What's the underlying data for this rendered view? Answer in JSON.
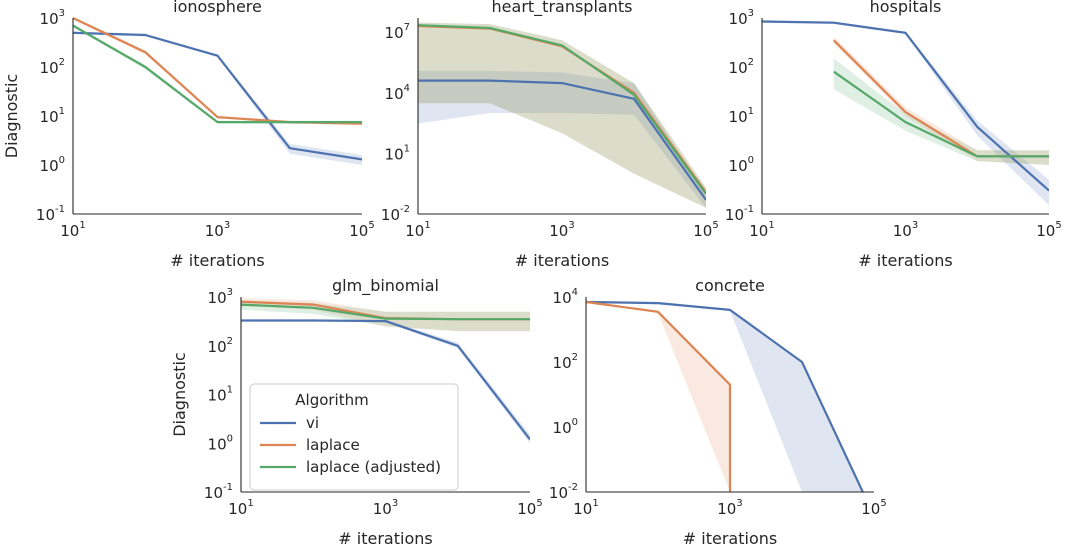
{
  "figure": {
    "ylabel": "Diagnostic",
    "xlabel": "# iterations",
    "xscale": "log",
    "yscale": "log",
    "xlim": [
      10,
      100000
    ],
    "x_ticks": [
      "10^1",
      "10^3",
      "10^5"
    ],
    "grid": false
  },
  "legend": {
    "title": "Algorithm",
    "placement": "lower-left of glm_binomial panel",
    "entries": [
      {
        "name": "vi",
        "color": "#4c72b0"
      },
      {
        "name": "laplace",
        "color": "#dd8452"
      },
      {
        "name": "laplace (adjusted)",
        "color": "#55a868"
      }
    ]
  },
  "colors": {
    "vi": "#4c72b0",
    "laplace": "#dd8452",
    "laplace (adjusted)": "#55a868"
  },
  "chart_data": [
    {
      "title": "ionosphere",
      "type": "line",
      "xlabel": "# iterations",
      "ylabel": "Diagnostic",
      "ylim": [
        0.1,
        1000
      ],
      "y_ticks": [
        "10^-1",
        "10^0",
        "10^1",
        "10^2",
        "10^3"
      ],
      "series": [
        {
          "name": "vi",
          "x": [
            10,
            100,
            1000,
            10000,
            100000
          ],
          "y": [
            500,
            450,
            170,
            2.2,
            1.3
          ],
          "lo": [
            470,
            420,
            160,
            1.7,
            1.0
          ],
          "hi": [
            530,
            480,
            180,
            2.7,
            1.6
          ]
        },
        {
          "name": "laplace",
          "x": [
            10,
            100,
            1000,
            10000,
            100000
          ],
          "y": [
            1000,
            200,
            9.5,
            7.5,
            7.0
          ],
          "lo": [
            950,
            180,
            9.0,
            7.0,
            6.5
          ],
          "hi": [
            1050,
            220,
            10.0,
            8.0,
            7.5
          ]
        },
        {
          "name": "laplace (adjusted)",
          "x": [
            10,
            100,
            1000,
            10000,
            100000
          ],
          "y": [
            700,
            100,
            7.5,
            7.5,
            7.5
          ],
          "lo": [
            650,
            90,
            7.0,
            7.0,
            7.0
          ],
          "hi": [
            750,
            110,
            8.0,
            8.0,
            8.0
          ]
        }
      ]
    },
    {
      "title": "heart_transplants",
      "type": "line",
      "xlabel": "# iterations",
      "ylabel": "",
      "ylim": [
        0.01,
        50000000
      ],
      "y_ticks": [
        "10^-2",
        "10^1",
        "10^4",
        "10^7"
      ],
      "series": [
        {
          "name": "vi",
          "x": [
            10,
            100,
            1000,
            10000,
            100000
          ],
          "y": [
            40000,
            40000,
            30000,
            5000,
            0.05
          ],
          "lo": [
            300,
            1000,
            1000,
            800,
            0.02
          ],
          "hi": [
            120000,
            120000,
            100000,
            30000,
            0.1
          ]
        },
        {
          "name": "laplace",
          "x": [
            10,
            100,
            1000,
            10000,
            100000
          ],
          "y": [
            20000000,
            15000000,
            2000000,
            10000,
            0.12
          ],
          "lo": [
            3000,
            3000,
            100,
            1,
            0.02
          ],
          "hi": [
            30000000,
            25000000,
            4000000,
            30000,
            0.2
          ]
        },
        {
          "name": "laplace (adjusted)",
          "x": [
            10,
            100,
            1000,
            10000,
            100000
          ],
          "y": [
            22000000,
            16000000,
            2200000,
            8000,
            0.1
          ],
          "lo": [
            3000,
            3000,
            100,
            1,
            0.02
          ],
          "hi": [
            30000000,
            25000000,
            4000000,
            30000,
            0.2
          ]
        }
      ]
    },
    {
      "title": "hospitals",
      "type": "line",
      "xlabel": "# iterations",
      "ylabel": "",
      "ylim": [
        0.1,
        1000
      ],
      "y_ticks": [
        "10^-1",
        "10^0",
        "10^1",
        "10^2",
        "10^3"
      ],
      "series": [
        {
          "name": "vi",
          "x": [
            10,
            100,
            1000,
            10000,
            100000
          ],
          "y": [
            850,
            800,
            500,
            6.0,
            0.3
          ],
          "lo": [
            800,
            750,
            470,
            4.0,
            0.15
          ],
          "hi": [
            900,
            850,
            530,
            8.0,
            0.5
          ]
        },
        {
          "name": "laplace",
          "x": [
            100,
            1000,
            10000,
            100000
          ],
          "y": [
            350,
            12,
            1.5,
            1.5
          ],
          "lo": [
            300,
            10,
            1.2,
            1.0
          ],
          "hi": [
            420,
            15,
            2.0,
            2.0
          ]
        },
        {
          "name": "laplace (adjusted)",
          "x": [
            100,
            1000,
            10000,
            100000
          ],
          "y": [
            80,
            7.5,
            1.5,
            1.5
          ],
          "lo": [
            35,
            5,
            1.2,
            1.0
          ],
          "hi": [
            150,
            11,
            2.0,
            2.0
          ]
        }
      ]
    },
    {
      "title": "glm_binomial",
      "type": "line",
      "xlabel": "# iterations",
      "ylabel": "Diagnostic",
      "ylim": [
        0.1,
        1000
      ],
      "y_ticks": [
        "10^-1",
        "10^0",
        "10^1",
        "10^2",
        "10^3"
      ],
      "series": [
        {
          "name": "vi",
          "x": [
            10,
            100,
            1000,
            10000,
            100000
          ],
          "y": [
            330,
            330,
            320,
            100,
            1.2
          ],
          "lo": [
            320,
            320,
            300,
            90,
            1.0
          ],
          "hi": [
            340,
            340,
            340,
            115,
            1.5
          ]
        },
        {
          "name": "laplace",
          "x": [
            10,
            100,
            1000,
            10000,
            100000
          ],
          "y": [
            800,
            700,
            370,
            350,
            350
          ],
          "lo": [
            650,
            550,
            250,
            200,
            200
          ],
          "hi": [
            950,
            850,
            500,
            500,
            500
          ]
        },
        {
          "name": "laplace (adjusted)",
          "x": [
            10,
            100,
            1000,
            10000,
            100000
          ],
          "y": [
            700,
            600,
            360,
            350,
            350
          ],
          "lo": [
            550,
            450,
            250,
            200,
            200
          ],
          "hi": [
            850,
            750,
            500,
            500,
            500
          ]
        }
      ]
    },
    {
      "title": "concrete",
      "type": "line",
      "xlabel": "# iterations",
      "ylabel": "",
      "ylim": [
        0.01,
        10000
      ],
      "y_ticks": [
        "10^-2",
        "10^0",
        "10^2",
        "10^4"
      ],
      "series": [
        {
          "name": "vi",
          "x": [
            10,
            100,
            1000,
            10000,
            70000
          ],
          "y": [
            7000,
            6500,
            4000,
            100,
            0.01
          ],
          "lo": [
            6500,
            6000,
            3800,
            0.01,
            0.01
          ],
          "hi": [
            7500,
            7000,
            4300,
            100,
            0.01
          ]
        },
        {
          "name": "laplace",
          "x": [
            10,
            100,
            1000,
            1000
          ],
          "y": [
            7000,
            3500,
            20,
            0.01
          ],
          "lo": [
            6500,
            3200,
            0.01,
            0.01
          ],
          "hi": [
            7500,
            3800,
            20,
            0.01
          ]
        }
      ]
    }
  ]
}
